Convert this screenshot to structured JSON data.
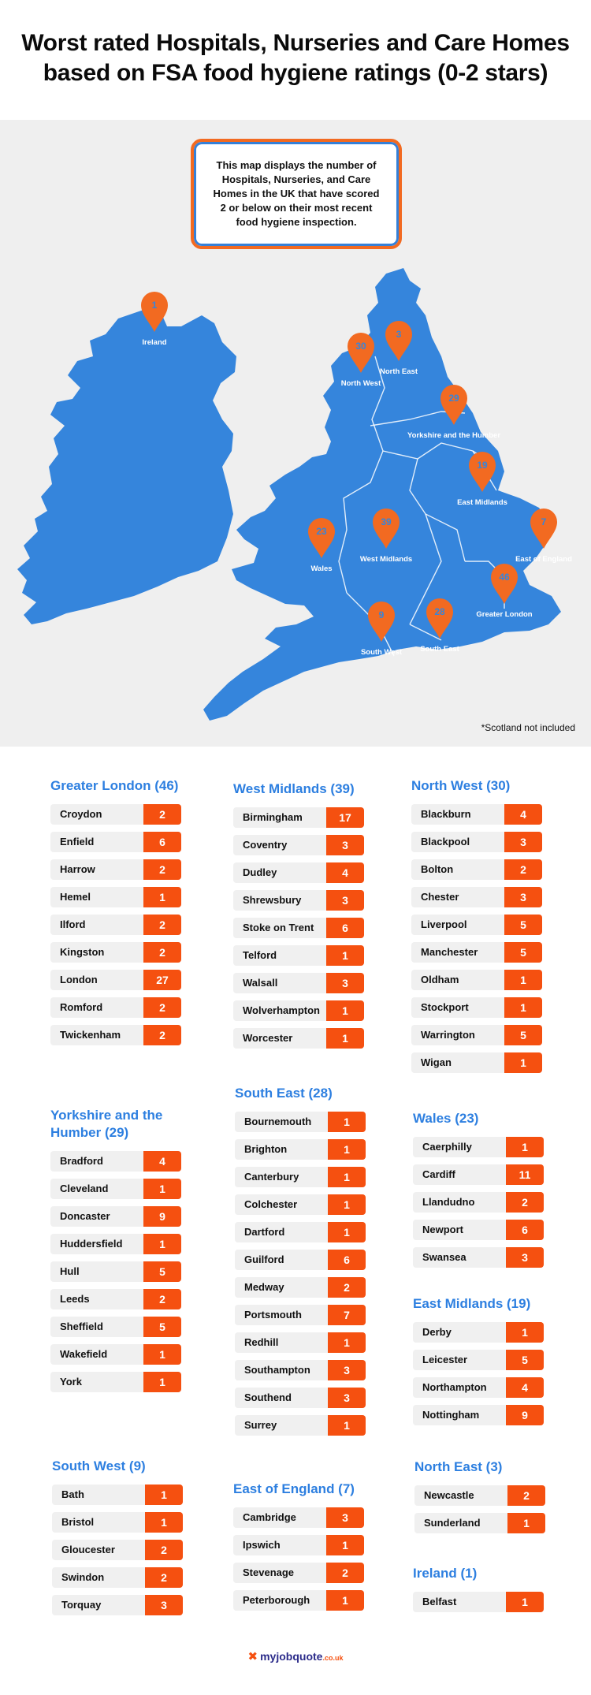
{
  "title_line1": "Worst rated Hospitals, Nurseries and Care Homes",
  "title_line2": "based on FSA food hygiene ratings (0-2 stars)",
  "info_text": "This map displays the number of Hospitals, Nurseries, and Care Homes in the UK that have scored 2 or below on their most recent food hygiene inspection.",
  "scotland_note": "*Scotland not included",
  "colors": {
    "land": "#3585dc",
    "pin": "#f26a21",
    "count_bg": "#f55010",
    "region_title": "#2d7fe0"
  },
  "map_pins": [
    {
      "label": "Ireland",
      "count": "1"
    },
    {
      "label": "North West",
      "count": "30"
    },
    {
      "label": "North East",
      "count": "3"
    },
    {
      "label": "Yorkshire and the Humber",
      "count": "29"
    },
    {
      "label": "East Midlands",
      "count": "19"
    },
    {
      "label": "West Midlands",
      "count": "39"
    },
    {
      "label": "Wales",
      "count": "23"
    },
    {
      "label": "East of England",
      "count": "7"
    },
    {
      "label": "Greater London",
      "count": "46"
    },
    {
      "label": "South West",
      "count": "9"
    },
    {
      "label": "South East",
      "count": "28"
    }
  ],
  "regions": {
    "greater_london": {
      "title": "Greater London (46)",
      "rows": [
        {
          "city": "Croydon",
          "count": "2"
        },
        {
          "city": "Enfield",
          "count": "6"
        },
        {
          "city": "Harrow",
          "count": "2"
        },
        {
          "city": "Hemel",
          "count": "1"
        },
        {
          "city": "Ilford",
          "count": "2"
        },
        {
          "city": "Kingston",
          "count": "2"
        },
        {
          "city": "London",
          "count": "27"
        },
        {
          "city": "Romford",
          "count": "2"
        },
        {
          "city": "Twickenham",
          "count": "2"
        }
      ]
    },
    "west_midlands": {
      "title": "West Midlands (39)",
      "rows": [
        {
          "city": "Birmingham",
          "count": "17"
        },
        {
          "city": "Coventry",
          "count": "3"
        },
        {
          "city": "Dudley",
          "count": "4"
        },
        {
          "city": "Shrewsbury",
          "count": "3"
        },
        {
          "city": "Stoke on Trent",
          "count": "6"
        },
        {
          "city": "Telford",
          "count": "1"
        },
        {
          "city": "Walsall",
          "count": "3"
        },
        {
          "city": "Wolverhampton",
          "count": "1"
        },
        {
          "city": "Worcester",
          "count": "1"
        }
      ]
    },
    "north_west": {
      "title": "North West (30)",
      "rows": [
        {
          "city": "Blackburn",
          "count": "4"
        },
        {
          "city": "Blackpool",
          "count": "3"
        },
        {
          "city": "Bolton",
          "count": "2"
        },
        {
          "city": "Chester",
          "count": "3"
        },
        {
          "city": "Liverpool",
          "count": "5"
        },
        {
          "city": "Manchester",
          "count": "5"
        },
        {
          "city": "Oldham",
          "count": "1"
        },
        {
          "city": "Stockport",
          "count": "1"
        },
        {
          "city": "Warrington",
          "count": "5"
        },
        {
          "city": "Wigan",
          "count": "1"
        }
      ]
    },
    "yorkshire": {
      "title": "Yorkshire and the Humber (29)",
      "rows": [
        {
          "city": "Bradford",
          "count": "4"
        },
        {
          "city": "Cleveland",
          "count": "1"
        },
        {
          "city": "Doncaster",
          "count": "9"
        },
        {
          "city": "Huddersfield",
          "count": "1"
        },
        {
          "city": "Hull",
          "count": "5"
        },
        {
          "city": "Leeds",
          "count": "2"
        },
        {
          "city": "Sheffield",
          "count": "5"
        },
        {
          "city": "Wakefield",
          "count": "1"
        },
        {
          "city": "York",
          "count": "1"
        }
      ]
    },
    "south_east": {
      "title": "South East (28)",
      "rows": [
        {
          "city": "Bournemouth",
          "count": "1"
        },
        {
          "city": "Brighton",
          "count": "1"
        },
        {
          "city": "Canterbury",
          "count": "1"
        },
        {
          "city": "Colchester",
          "count": "1"
        },
        {
          "city": "Dartford",
          "count": "1"
        },
        {
          "city": "Guilford",
          "count": "6"
        },
        {
          "city": "Medway",
          "count": "2"
        },
        {
          "city": "Portsmouth",
          "count": "7"
        },
        {
          "city": "Redhill",
          "count": "1"
        },
        {
          "city": "Southampton",
          "count": "3"
        },
        {
          "city": "Southend",
          "count": "3"
        },
        {
          "city": "Surrey",
          "count": "1"
        }
      ]
    },
    "wales": {
      "title": "Wales (23)",
      "rows": [
        {
          "city": "Caerphilly",
          "count": "1"
        },
        {
          "city": "Cardiff",
          "count": "11"
        },
        {
          "city": "Llandudno",
          "count": "2"
        },
        {
          "city": "Newport",
          "count": "6"
        },
        {
          "city": "Swansea",
          "count": "3"
        }
      ]
    },
    "east_midlands": {
      "title": "East Midlands (19)",
      "rows": [
        {
          "city": "Derby",
          "count": "1"
        },
        {
          "city": "Leicester",
          "count": "5"
        },
        {
          "city": "Northampton",
          "count": "4"
        },
        {
          "city": "Nottingham",
          "count": "9"
        }
      ]
    },
    "south_west": {
      "title": "South West (9)",
      "rows": [
        {
          "city": "Bath",
          "count": "1"
        },
        {
          "city": "Bristol",
          "count": "1"
        },
        {
          "city": "Gloucester",
          "count": "2"
        },
        {
          "city": "Swindon",
          "count": "2"
        },
        {
          "city": "Torquay",
          "count": "3"
        }
      ]
    },
    "east_of_england": {
      "title": "East of England (7)",
      "rows": [
        {
          "city": "Cambridge",
          "count": "3"
        },
        {
          "city": "Ipswich",
          "count": "1"
        },
        {
          "city": "Stevenage",
          "count": "2"
        },
        {
          "city": "Peterborough",
          "count": "1"
        }
      ]
    },
    "north_east": {
      "title": "North East (3)",
      "rows": [
        {
          "city": "Newcastle",
          "count": "2"
        },
        {
          "city": "Sunderland",
          "count": "1"
        }
      ]
    },
    "ireland": {
      "title": "Ireland (1)",
      "rows": [
        {
          "city": "Belfast",
          "count": "1"
        }
      ]
    }
  },
  "footer": {
    "brand_a": "my",
    "brand_b": "jobquote",
    "brand_tld": ".co.uk",
    "icon": "tools-icon"
  }
}
